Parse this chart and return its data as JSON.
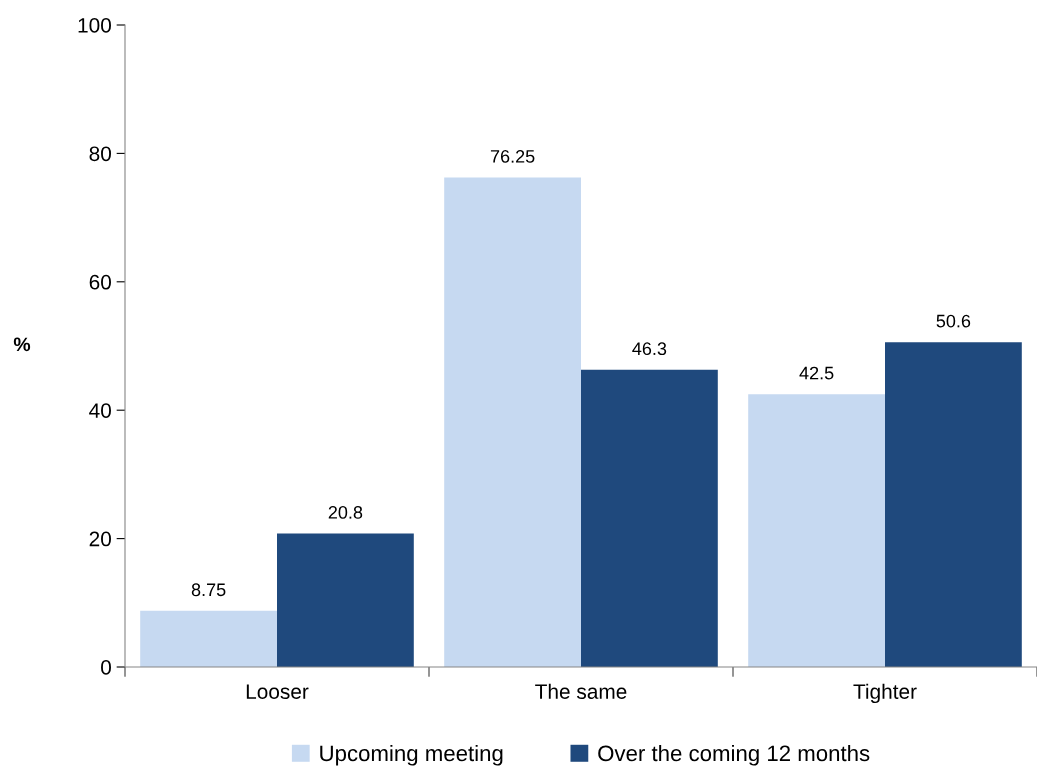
{
  "chart_data": {
    "type": "bar",
    "ylabel": "%",
    "categories": [
      "Looser",
      "The same",
      "Tighter"
    ],
    "series": [
      {
        "name": "Upcoming meeting",
        "color": "#c6d9f1",
        "values": [
          8.75,
          76.25,
          42.5
        ]
      },
      {
        "name": "Over the coming 12 months",
        "color": "#1f497d",
        "values": [
          20.8,
          46.3,
          50.6
        ]
      }
    ],
    "ylim": [
      0,
      100
    ],
    "yticks": [
      0,
      20,
      40,
      60,
      80,
      100
    ],
    "data_labels": true,
    "legend": "bottom"
  }
}
